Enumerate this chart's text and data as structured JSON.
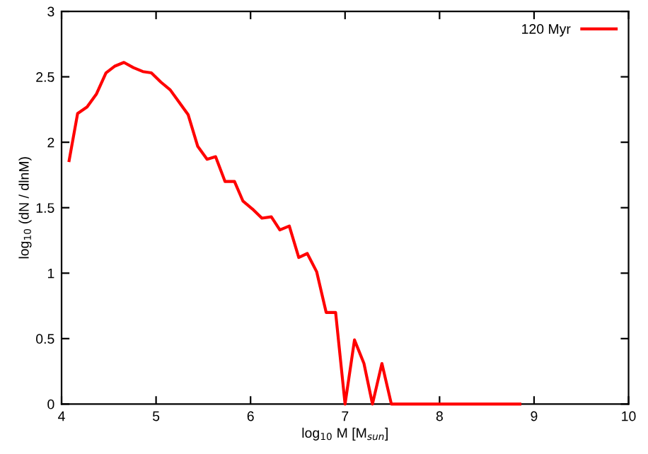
{
  "chart_data": {
    "type": "line",
    "xlabel": "log$_{10}$ M [M$_{sun}$]",
    "ylabel": "log$_{10}$ (dN / dlnM)",
    "xlim": [
      4,
      10
    ],
    "ylim": [
      0,
      3
    ],
    "xticks": [
      4,
      5,
      6,
      7,
      8,
      9,
      10
    ],
    "yticks": [
      0,
      0.5,
      1,
      1.5,
      2,
      2.5,
      3
    ],
    "grid": false,
    "legend": "top right",
    "series": [
      {
        "name": "120 Myr",
        "color": "#ff0000",
        "x": [
          4.08,
          4.17,
          4.27,
          4.37,
          4.47,
          4.56,
          4.66,
          4.76,
          4.86,
          4.95,
          5.05,
          5.15,
          5.24,
          5.34,
          5.44,
          5.54,
          5.63,
          5.73,
          5.83,
          5.92,
          6.02,
          6.12,
          6.22,
          6.31,
          6.41,
          6.51,
          6.6,
          6.7,
          6.8,
          6.9,
          7.0,
          7.1,
          7.2,
          7.29,
          7.39,
          7.49,
          7.58,
          7.68,
          7.78,
          7.88,
          7.97,
          8.07,
          8.17,
          8.27,
          8.36,
          8.46,
          8.56,
          8.66,
          8.85
        ],
        "values": [
          1.86,
          2.22,
          2.27,
          2.37,
          2.53,
          2.58,
          2.61,
          2.57,
          2.54,
          2.53,
          2.46,
          2.4,
          2.31,
          2.21,
          1.97,
          1.87,
          1.89,
          1.7,
          1.7,
          1.55,
          1.49,
          1.42,
          1.43,
          1.33,
          1.36,
          1.12,
          1.15,
          1.01,
          0.7,
          0.7,
          0,
          0.49,
          0.31,
          0,
          0.31,
          0,
          0,
          0,
          0,
          0,
          0,
          0,
          0,
          0,
          0,
          0,
          0,
          0,
          0
        ]
      }
    ]
  }
}
